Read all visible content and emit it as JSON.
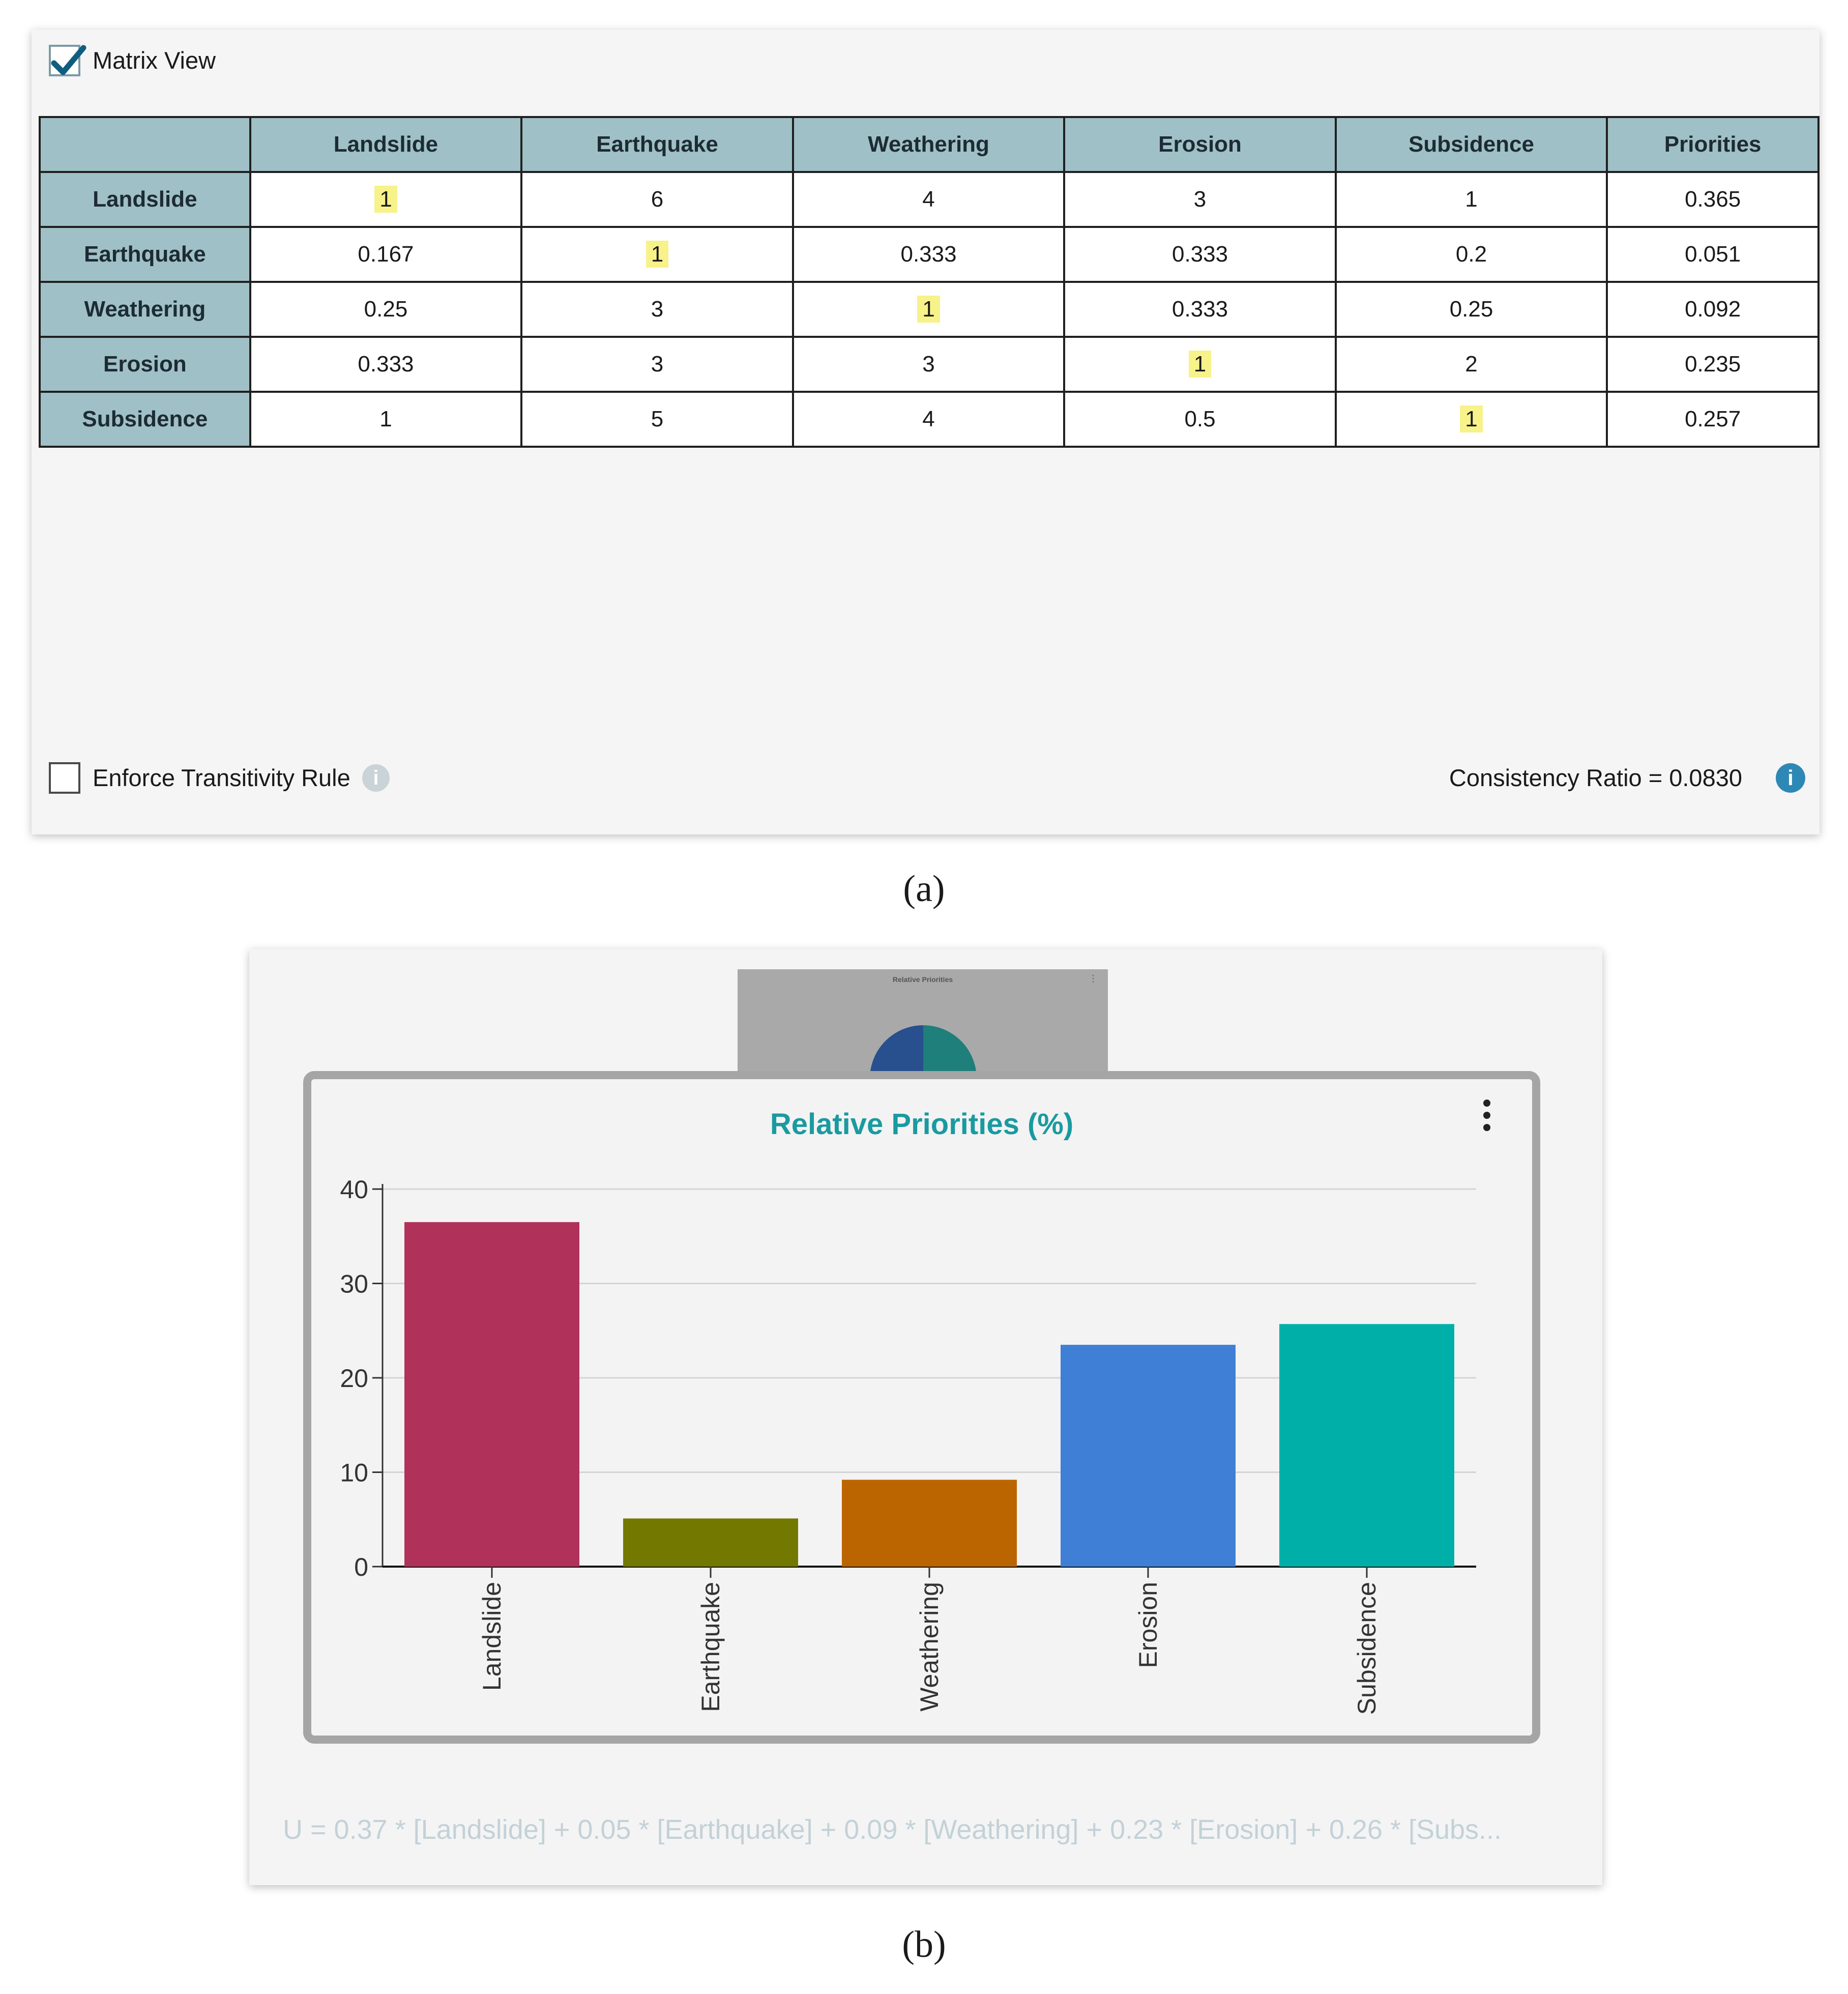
{
  "panel_a": {
    "matrix_view_label": "Matrix View",
    "matrix_view_checked": true,
    "table": {
      "headers": [
        "",
        "Landslide",
        "Earthquake",
        "Weathering",
        "Erosion",
        "Subsidence",
        "Priorities"
      ],
      "rows": [
        {
          "label": "Landslide",
          "cells": [
            "1",
            "6",
            "4",
            "3",
            "1",
            "0.365"
          ]
        },
        {
          "label": "Earthquake",
          "cells": [
            "0.167",
            "1",
            "0.333",
            "0.333",
            "0.2",
            "0.051"
          ]
        },
        {
          "label": "Weathering",
          "cells": [
            "0.25",
            "3",
            "1",
            "0.333",
            "0.25",
            "0.092"
          ]
        },
        {
          "label": "Erosion",
          "cells": [
            "0.333",
            "3",
            "3",
            "1",
            "2",
            "0.235"
          ]
        },
        {
          "label": "Subsidence",
          "cells": [
            "1",
            "5",
            "4",
            "0.5",
            "1",
            "0.257"
          ]
        }
      ]
    },
    "enforce_transitivity_label": "Enforce Transitivity Rule",
    "enforce_transitivity_checked": false,
    "info_icon_glyph": "i",
    "consistency_ratio_text": "Consistency Ratio  =  0.0830"
  },
  "caption_a": "(a)",
  "caption_b": "(b)",
  "panel_b": {
    "thumbnail_title": "Relative Priorities",
    "thumbnail_menu": "⋮",
    "formula": "U =  0.37 * [Landslide] + 0.05 * [Earthquake] + 0.09 * [Weathering] + 0.23 * [Erosion] + 0.26 * [Subs..."
  },
  "chart_data": {
    "type": "bar",
    "title": "Relative Priorities (%)",
    "categories": [
      "Landslide",
      "Earthquake",
      "Weathering",
      "Erosion",
      "Subsidence"
    ],
    "values": [
      36.5,
      5.1,
      9.2,
      23.5,
      25.7
    ],
    "colors": [
      "#b0325b",
      "#737800",
      "#bb6500",
      "#3f7fd6",
      "#00b0a8"
    ],
    "ylim": [
      0,
      40
    ],
    "yticks": [
      0,
      10,
      20,
      30,
      40
    ],
    "grid": true,
    "xlabel": "",
    "ylabel": ""
  },
  "colors": {
    "header_bg": "#9fc0c6",
    "diagonal_highlight": "#f7f28a",
    "title_accent": "#1a9aa0",
    "info_icon": "#2e88b5"
  }
}
